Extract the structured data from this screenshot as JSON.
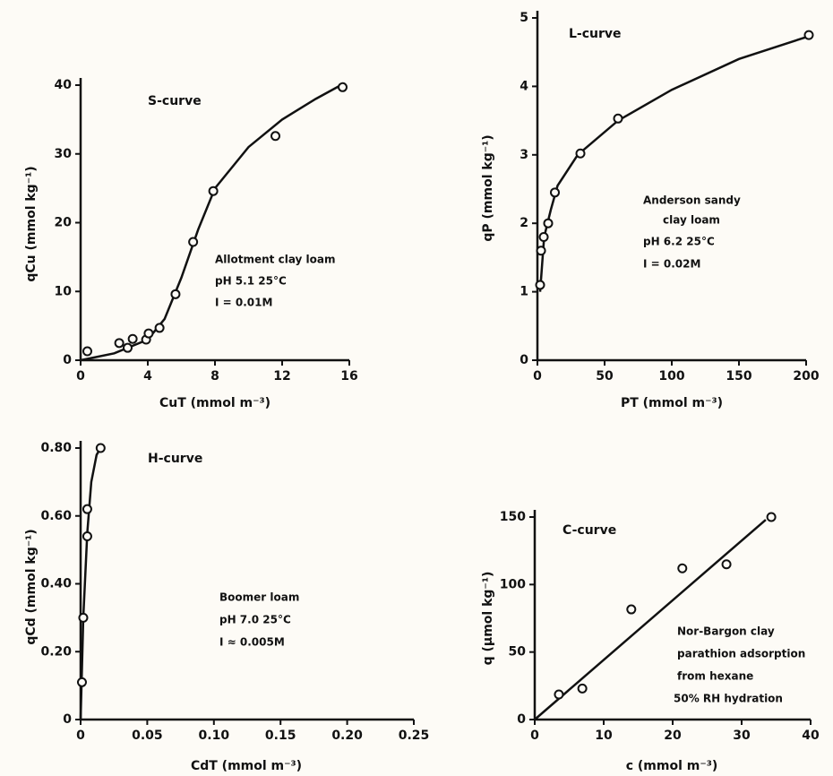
{
  "chart_data": [
    {
      "type": "scatter",
      "x_label": "CuT (mmol m⁻³)",
      "y_label": "qCu (mmol kg⁻¹)",
      "annotations": [
        "S-curve",
        "Allotment clay loam",
        "pH 5.1   25°C",
        "I = 0.01M"
      ],
      "x": [
        0.4,
        2.3,
        2.8,
        3.1,
        3.9,
        4.05,
        4.7,
        5.65,
        6.7,
        7.9,
        11.6,
        15.6
      ],
      "values": [
        1.3,
        2.5,
        1.8,
        3.1,
        3.0,
        3.9,
        4.7,
        9.6,
        17.2,
        24.6,
        32.6,
        39.7
      ],
      "curve": {
        "x": [
          0,
          2,
          4,
          5,
          6,
          7,
          8,
          10,
          12,
          14,
          15.5
        ],
        "values": [
          0,
          1,
          3,
          6,
          12,
          19,
          25,
          31,
          35,
          38,
          40
        ]
      },
      "color": "#111111",
      "xlim": [
        0,
        16
      ],
      "ylim": [
        0,
        40
      ],
      "xticks": [
        0,
        4,
        8,
        12,
        16
      ],
      "yticks": [
        0,
        10,
        20,
        30,
        40
      ]
    },
    {
      "type": "scatter",
      "x_label": "PT (mmol m⁻³)",
      "y_label": "qP (mmol kg⁻¹)",
      "annotations": [
        "L-curve",
        "Anderson sandy",
        "clay loam",
        "pH 6.2   25°C",
        "I = 0.02M"
      ],
      "x": [
        2,
        2.7,
        4.7,
        8,
        13,
        32,
        60,
        202
      ],
      "values": [
        1.1,
        1.6,
        1.8,
        2.0,
        2.45,
        3.02,
        3.53,
        4.75
      ],
      "curve": {
        "x": [
          2,
          5,
          10,
          15,
          30,
          60,
          100,
          150,
          200
        ],
        "values": [
          1,
          1.8,
          2.2,
          2.55,
          3.0,
          3.5,
          3.95,
          4.4,
          4.72
        ]
      },
      "color": "#111111",
      "xlim": [
        0,
        200
      ],
      "ylim": [
        0,
        5
      ],
      "xticks": [
        0,
        50,
        100,
        150,
        200
      ],
      "yticks": [
        0,
        1,
        2,
        3,
        4,
        5
      ]
    },
    {
      "type": "scatter",
      "x_label": "CdT (mmol m⁻³)",
      "y_label": "qCd (mmol kg⁻¹)",
      "annotations": [
        "H-curve",
        "Boomer loam",
        "pH 7.0   25°C",
        "I ≈ 0.005M"
      ],
      "x": [
        0.001,
        0.002,
        0.005,
        0.005,
        0.015
      ],
      "values": [
        0.11,
        0.3,
        0.54,
        0.62,
        0.8
      ],
      "curve": {
        "x": [
          0,
          0.002,
          0.005,
          0.008,
          0.012,
          0.015
        ],
        "values": [
          0,
          0.3,
          0.55,
          0.7,
          0.78,
          0.8
        ]
      },
      "color": "#111111",
      "xlim": [
        0,
        0.25
      ],
      "ylim": [
        0,
        0.8
      ],
      "xticks": [
        0,
        0.05,
        {
          "value": 0.1,
          "label": "0.10"
        },
        0.15,
        {
          "value": 0.2,
          "label": "0.20"
        },
        0.25
      ],
      "yticks": [
        0,
        {
          "value": 0.2,
          "label": "0.20"
        },
        {
          "value": 0.4,
          "label": "0.40"
        },
        {
          "value": 0.6,
          "label": "0.60"
        },
        {
          "value": 0.8,
          "label": "0.80"
        }
      ]
    },
    {
      "type": "scatter",
      "x_label": "c (mmol m⁻³)",
      "y_label": "q (μmol kg⁻¹)",
      "annotations": [
        "C-curve",
        "Nor-Bargon clay",
        "parathion adsorption",
        "from hexane",
        "50% RH hydration"
      ],
      "x": [
        3.5,
        6.9,
        14,
        21.4,
        27.8,
        34.3
      ],
      "values": [
        18.6,
        23,
        81.6,
        112,
        115,
        150
      ],
      "curve": {
        "x": [
          0,
          33.5
        ],
        "values": [
          0,
          148
        ]
      },
      "color": "#111111",
      "xlim": [
        0,
        40
      ],
      "ylim": [
        0,
        150
      ],
      "xticks": [
        0,
        10,
        20,
        30,
        40
      ],
      "yticks": [
        0,
        50,
        100,
        150
      ]
    }
  ]
}
